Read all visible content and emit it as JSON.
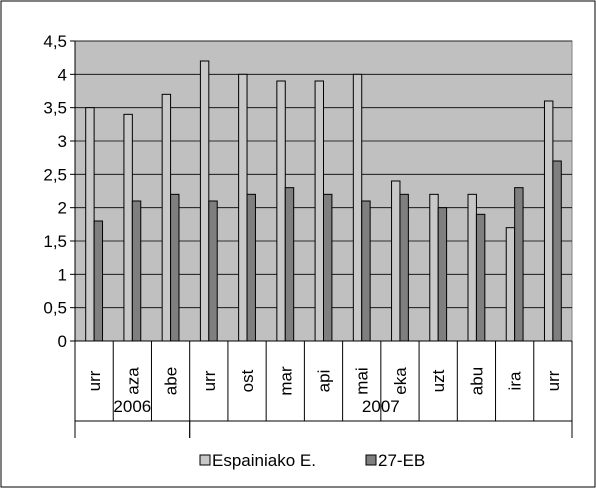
{
  "chart_data": {
    "type": "bar",
    "categories": [
      "urr",
      "aza",
      "abe",
      "urr",
      "ost",
      "mar",
      "api",
      "mai",
      "eka",
      "uzt",
      "abu",
      "ira",
      "urr"
    ],
    "groups": [
      {
        "label": "2006",
        "start": 0,
        "count": 3
      },
      {
        "label": "2007",
        "start": 3,
        "count": 10
      }
    ],
    "series": [
      {
        "name": "Espainiako E.",
        "color": "#c8c8c8",
        "values": [
          3.5,
          3.4,
          3.7,
          4.2,
          4.0,
          3.9,
          3.9,
          4.0,
          2.4,
          2.2,
          2.2,
          1.7,
          3.6
        ]
      },
      {
        "name": "27-EB",
        "color": "#7f7f7f",
        "values": [
          1.8,
          2.1,
          2.2,
          2.1,
          2.2,
          2.3,
          2.2,
          2.1,
          2.2,
          2.0,
          1.9,
          2.3,
          2.7
        ]
      }
    ],
    "y_ticks": [
      "0",
      "0,5",
      "1",
      "1,5",
      "2",
      "2,5",
      "3",
      "3,5",
      "4",
      "4,5"
    ],
    "ylim": [
      0,
      4.5
    ],
    "grid": true,
    "plot_background": "#c0c0c0",
    "legend_position": "bottom"
  }
}
